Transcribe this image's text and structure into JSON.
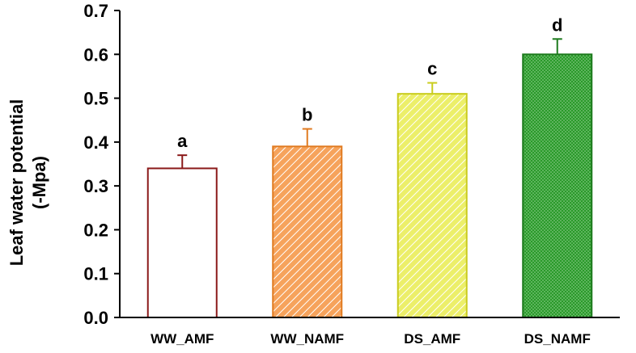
{
  "chart_data": {
    "type": "bar",
    "title": "",
    "xlabel": "",
    "ylabel_lines": [
      "Leaf water potential",
      "(-Mpa)"
    ],
    "categories": [
      "WW_AMF",
      "WW_NAMF",
      "DS_AMF",
      "DS_NAMF"
    ],
    "values": [
      0.34,
      0.39,
      0.51,
      0.6
    ],
    "errors": [
      0.03,
      0.04,
      0.025,
      0.035
    ],
    "significance": [
      "a",
      "b",
      "c",
      "d"
    ],
    "ylim": [
      0.0,
      0.7
    ],
    "yticks": [
      "0.0",
      "0.1",
      "0.2",
      "0.3",
      "0.4",
      "0.5",
      "0.6",
      "0.7"
    ],
    "grid": false,
    "legend": "none",
    "bar_styles": [
      {
        "fill": "#ffffff",
        "edge": "#8b1a1a",
        "pattern": "none",
        "pattern_color": ""
      },
      {
        "fill": "#f6a35c",
        "edge": "#e07b21",
        "pattern": "diagonal",
        "pattern_color": "#ffffff"
      },
      {
        "fill": "#ecef6a",
        "edge": "#c9cc1e",
        "pattern": "diagonal",
        "pattern_color": "#ffffff"
      },
      {
        "fill": "#2a9a2a",
        "edge": "#1d7a1d",
        "pattern": "dots",
        "pattern_color": "#9ad39a"
      }
    ]
  }
}
